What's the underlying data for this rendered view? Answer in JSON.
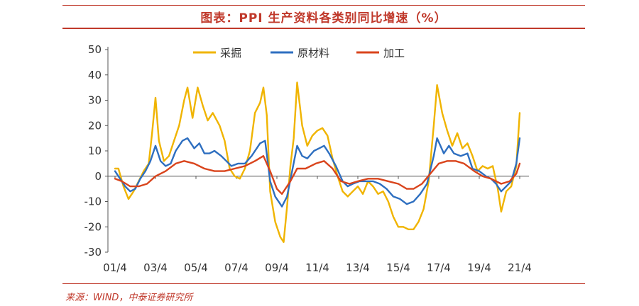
{
  "title": "图表：PPI 生产资料各类别同比增速（%）",
  "source": "来源：WIND，中泰证券研究所",
  "colors": {
    "mining": "#f0b400",
    "materials": "#2e6fc0",
    "processing": "#d9441c",
    "accent": "#c0392b"
  },
  "chart_data": {
    "type": "line",
    "title": "图表：PPI 生产资料各类别同比增速（%）",
    "xlabel": "",
    "ylabel": "",
    "ylim": [
      -30,
      50
    ],
    "yticks": [
      50,
      40,
      30,
      20,
      10,
      0,
      -10,
      -20,
      -30
    ],
    "x_tick_labels": [
      "01/4",
      "03/4",
      "05/4",
      "07/4",
      "09/4",
      "11/4",
      "13/4",
      "15/4",
      "17/4",
      "19/4",
      "21/4"
    ],
    "x_range": [
      "2001-04",
      "2021-04"
    ],
    "legend_position": "top",
    "grid": false,
    "series": [
      {
        "name": "采掘",
        "color": "#f0b400",
        "points": [
          [
            "2001-04",
            3
          ],
          [
            "2001-06",
            3
          ],
          [
            "2001-09",
            -4
          ],
          [
            "2001-12",
            -9
          ],
          [
            "2002-03",
            -6
          ],
          [
            "2002-06",
            -2
          ],
          [
            "2002-09",
            2
          ],
          [
            "2002-12",
            5
          ],
          [
            "2003-02",
            17
          ],
          [
            "2003-04",
            31
          ],
          [
            "2003-06",
            14
          ],
          [
            "2003-09",
            6
          ],
          [
            "2003-12",
            8
          ],
          [
            "2004-03",
            14
          ],
          [
            "2004-06",
            20
          ],
          [
            "2004-09",
            30
          ],
          [
            "2004-11",
            35
          ],
          [
            "2005-02",
            23
          ],
          [
            "2005-05",
            35
          ],
          [
            "2005-08",
            28
          ],
          [
            "2005-11",
            22
          ],
          [
            "2006-02",
            25
          ],
          [
            "2006-06",
            20
          ],
          [
            "2006-09",
            14
          ],
          [
            "2006-12",
            3
          ],
          [
            "2007-03",
            0
          ],
          [
            "2007-06",
            -1
          ],
          [
            "2007-09",
            3
          ],
          [
            "2007-12",
            10
          ],
          [
            "2008-03",
            25
          ],
          [
            "2008-06",
            29
          ],
          [
            "2008-08",
            35
          ],
          [
            "2008-10",
            24
          ],
          [
            "2008-12",
            -6
          ],
          [
            "2009-03",
            -18
          ],
          [
            "2009-06",
            -24
          ],
          [
            "2009-08",
            -26
          ],
          [
            "2009-10",
            -12
          ],
          [
            "2009-12",
            4
          ],
          [
            "2010-02",
            15
          ],
          [
            "2010-04",
            37
          ],
          [
            "2010-07",
            20
          ],
          [
            "2010-10",
            12
          ],
          [
            "2011-01",
            16
          ],
          [
            "2011-04",
            18
          ],
          [
            "2011-07",
            19
          ],
          [
            "2011-10",
            16
          ],
          [
            "2012-01",
            7
          ],
          [
            "2012-04",
            0
          ],
          [
            "2012-07",
            -6
          ],
          [
            "2012-10",
            -8
          ],
          [
            "2013-01",
            -6
          ],
          [
            "2013-04",
            -4
          ],
          [
            "2013-07",
            -7
          ],
          [
            "2013-10",
            -2
          ],
          [
            "2014-01",
            -4
          ],
          [
            "2014-04",
            -7
          ],
          [
            "2014-07",
            -6
          ],
          [
            "2014-10",
            -10
          ],
          [
            "2015-01",
            -16
          ],
          [
            "2015-04",
            -20
          ],
          [
            "2015-07",
            -20
          ],
          [
            "2015-10",
            -21
          ],
          [
            "2016-01",
            -21
          ],
          [
            "2016-04",
            -18
          ],
          [
            "2016-07",
            -13
          ],
          [
            "2016-10",
            -2
          ],
          [
            "2017-01",
            20
          ],
          [
            "2017-03",
            36
          ],
          [
            "2017-06",
            25
          ],
          [
            "2017-09",
            18
          ],
          [
            "2017-12",
            12
          ],
          [
            "2018-03",
            17
          ],
          [
            "2018-06",
            11
          ],
          [
            "2018-09",
            13
          ],
          [
            "2018-12",
            8
          ],
          [
            "2019-03",
            2
          ],
          [
            "2019-06",
            4
          ],
          [
            "2019-09",
            3
          ],
          [
            "2019-12",
            4
          ],
          [
            "2020-03",
            -5
          ],
          [
            "2020-05",
            -14
          ],
          [
            "2020-08",
            -6
          ],
          [
            "2020-11",
            -4
          ],
          [
            "2021-02",
            4
          ],
          [
            "2021-04",
            25
          ]
        ]
      },
      {
        "name": "原材料",
        "color": "#2e6fc0",
        "points": [
          [
            "2001-04",
            2
          ],
          [
            "2001-07",
            -1
          ],
          [
            "2001-10",
            -4
          ],
          [
            "2002-01",
            -6
          ],
          [
            "2002-04",
            -5
          ],
          [
            "2002-07",
            -1
          ],
          [
            "2002-10",
            2
          ],
          [
            "2003-01",
            6
          ],
          [
            "2003-04",
            12
          ],
          [
            "2003-07",
            6
          ],
          [
            "2003-10",
            4
          ],
          [
            "2004-01",
            5
          ],
          [
            "2004-04",
            10
          ],
          [
            "2004-08",
            14
          ],
          [
            "2004-11",
            15
          ],
          [
            "2005-03",
            11
          ],
          [
            "2005-06",
            13
          ],
          [
            "2005-09",
            9
          ],
          [
            "2005-12",
            9
          ],
          [
            "2006-03",
            10
          ],
          [
            "2006-07",
            8
          ],
          [
            "2006-10",
            6
          ],
          [
            "2007-01",
            4
          ],
          [
            "2007-05",
            5
          ],
          [
            "2007-09",
            5
          ],
          [
            "2008-01",
            8
          ],
          [
            "2008-06",
            13
          ],
          [
            "2008-09",
            14
          ],
          [
            "2008-12",
            -2
          ],
          [
            "2009-03",
            -8
          ],
          [
            "2009-07",
            -12
          ],
          [
            "2009-10",
            -8
          ],
          [
            "2010-01",
            2
          ],
          [
            "2010-04",
            12
          ],
          [
            "2010-07",
            8
          ],
          [
            "2010-10",
            7
          ],
          [
            "2011-02",
            10
          ],
          [
            "2011-05",
            11
          ],
          [
            "2011-08",
            12
          ],
          [
            "2011-11",
            9
          ],
          [
            "2012-03",
            4
          ],
          [
            "2012-07",
            -2
          ],
          [
            "2012-10",
            -4
          ],
          [
            "2013-01",
            -3
          ],
          [
            "2013-05",
            -2
          ],
          [
            "2013-09",
            -2
          ],
          [
            "2014-01",
            -2
          ],
          [
            "2014-05",
            -3
          ],
          [
            "2014-09",
            -5
          ],
          [
            "2015-01",
            -8
          ],
          [
            "2015-05",
            -9
          ],
          [
            "2015-09",
            -11
          ],
          [
            "2016-01",
            -10
          ],
          [
            "2016-05",
            -7
          ],
          [
            "2016-09",
            -3
          ],
          [
            "2017-01",
            8
          ],
          [
            "2017-03",
            15
          ],
          [
            "2017-07",
            9
          ],
          [
            "2017-10",
            12
          ],
          [
            "2018-01",
            9
          ],
          [
            "2018-05",
            8
          ],
          [
            "2018-09",
            9
          ],
          [
            "2018-12",
            3
          ],
          [
            "2019-04",
            2
          ],
          [
            "2019-08",
            0
          ],
          [
            "2019-11",
            -1
          ],
          [
            "2020-02",
            -3
          ],
          [
            "2020-05",
            -6
          ],
          [
            "2020-08",
            -4
          ],
          [
            "2020-11",
            -2
          ],
          [
            "2021-02",
            5
          ],
          [
            "2021-04",
            15
          ]
        ]
      },
      {
        "name": "加工",
        "color": "#d9441c",
        "points": [
          [
            "2001-04",
            -1
          ],
          [
            "2001-08",
            -2
          ],
          [
            "2002-01",
            -4
          ],
          [
            "2002-06",
            -4
          ],
          [
            "2002-11",
            -3
          ],
          [
            "2003-04",
            0
          ],
          [
            "2003-10",
            2
          ],
          [
            "2004-04",
            5
          ],
          [
            "2004-09",
            6
          ],
          [
            "2005-03",
            5
          ],
          [
            "2005-09",
            3
          ],
          [
            "2006-03",
            2
          ],
          [
            "2006-09",
            2
          ],
          [
            "2007-03",
            3
          ],
          [
            "2007-09",
            4
          ],
          [
            "2008-03",
            6
          ],
          [
            "2008-08",
            8
          ],
          [
            "2008-12",
            2
          ],
          [
            "2009-04",
            -5
          ],
          [
            "2009-07",
            -7
          ],
          [
            "2009-12",
            -2
          ],
          [
            "2010-04",
            3
          ],
          [
            "2010-09",
            3
          ],
          [
            "2011-03",
            5
          ],
          [
            "2011-08",
            6
          ],
          [
            "2012-01",
            3
          ],
          [
            "2012-06",
            -2
          ],
          [
            "2012-11",
            -3
          ],
          [
            "2013-04",
            -2
          ],
          [
            "2013-10",
            -1
          ],
          [
            "2014-04",
            -1
          ],
          [
            "2014-10",
            -2
          ],
          [
            "2015-04",
            -3
          ],
          [
            "2015-09",
            -5
          ],
          [
            "2016-01",
            -5
          ],
          [
            "2016-06",
            -3
          ],
          [
            "2016-11",
            1
          ],
          [
            "2017-04",
            5
          ],
          [
            "2017-09",
            6
          ],
          [
            "2018-02",
            6
          ],
          [
            "2018-07",
            5
          ],
          [
            "2019-01",
            2
          ],
          [
            "2019-06",
            0
          ],
          [
            "2019-11",
            -1
          ],
          [
            "2020-05",
            -3
          ],
          [
            "2020-10",
            -2
          ],
          [
            "2021-02",
            1
          ],
          [
            "2021-04",
            5
          ]
        ]
      }
    ]
  }
}
